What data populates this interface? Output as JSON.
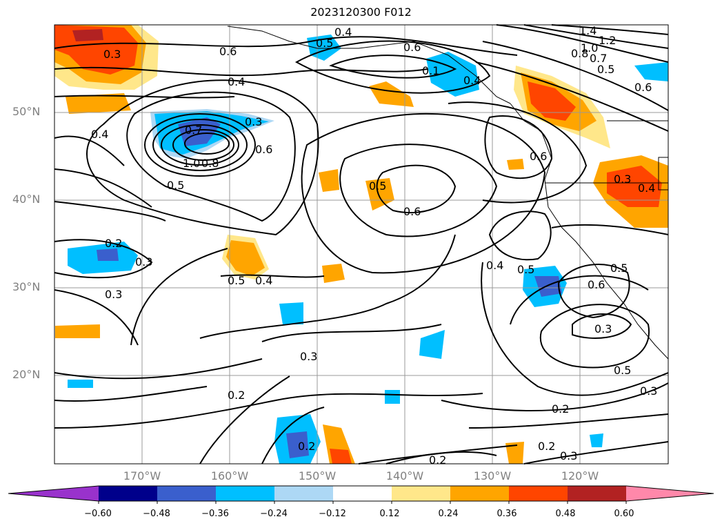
{
  "title": "2023120300 F012",
  "lat_labels": [
    "50°N",
    "40°N",
    "30°N",
    "20°N"
  ],
  "lon_labels": [
    "170°W",
    "160°W",
    "150°W",
    "140°W",
    "130°W",
    "120°W"
  ],
  "colorbar": {
    "colors": [
      "#9932cc",
      "#00008b",
      "#3a5fcd",
      "#00bfff",
      "#add8f5",
      "#ffffff",
      "#ffe78a",
      "#ffa500",
      "#ff4500",
      "#b22222",
      "#ff88aa"
    ],
    "ticks": [
      "−0.60",
      "−0.48",
      "−0.36",
      "−0.24",
      "−0.12",
      "0.12",
      "0.24",
      "0.36",
      "0.48",
      "0.60"
    ]
  },
  "contour_labels": [
    "0.4",
    "0.5",
    "0.6",
    "0.6",
    "0.4",
    "1.4",
    "1.2",
    "1.0",
    "0.8",
    "0.7",
    "0.5",
    "0.6",
    "0.3",
    "0.1",
    "0.4",
    "0.4",
    "0.3",
    "0.7",
    "1.0",
    "0.8",
    "0.6",
    "0.5",
    "0.5",
    "0.6",
    "0.6",
    "0.3",
    "0.4",
    "0.2",
    "0.3",
    "0.3",
    "0.5",
    "0.4",
    "0.4",
    "0.5",
    "0.6",
    "0.5",
    "0.3",
    "0.3",
    "0.5",
    "0.3",
    "0.2",
    "0.2",
    "0.2",
    "0.2",
    "0.3",
    "0.2"
  ],
  "shading_levels": [
    "0.12",
    "0.24",
    "0.36",
    "0.48",
    "-0.12",
    "-0.24",
    "-0.36",
    "-0.48"
  ]
}
